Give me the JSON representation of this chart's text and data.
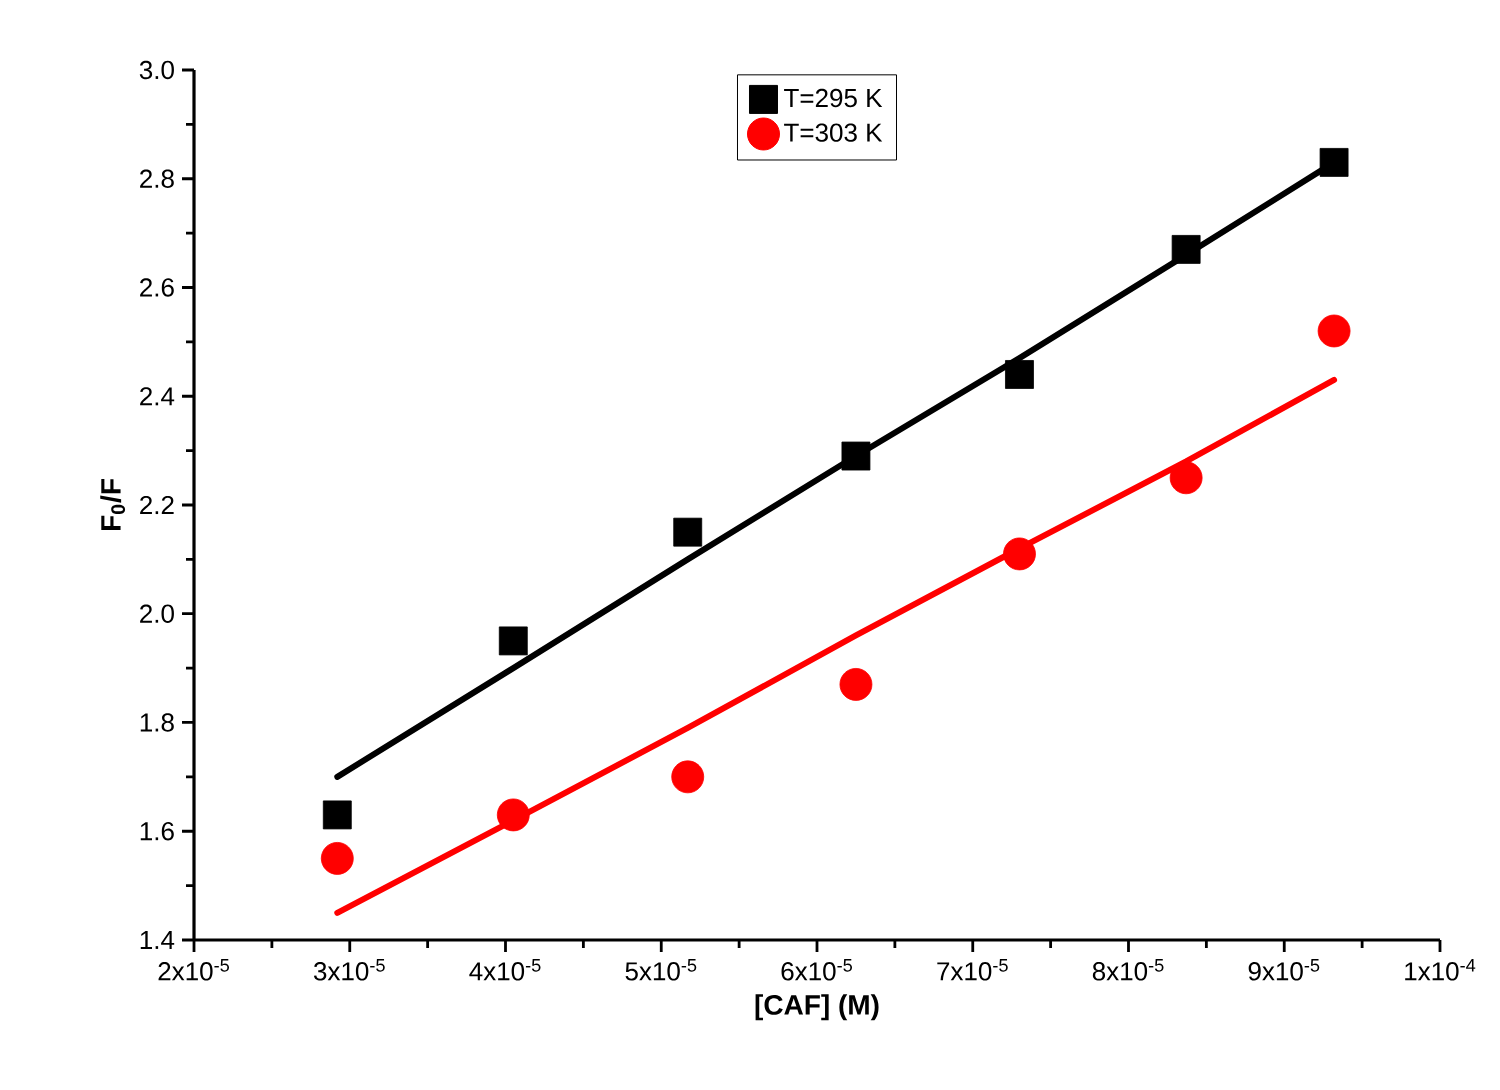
{
  "chart_data": {
    "type": "scatter",
    "xlabel": "[CAF] (M)",
    "ylabel": "**F$_{0}$/F**",
    "xlim": [
      2e-05,
      0.0001
    ],
    "xticks": [
      {
        "value": 2e-05,
        "label": "2x10$^{-5}$"
      },
      {
        "value": 3e-05,
        "label": "3x10$^{-5}$"
      },
      {
        "value": 4e-05,
        "label": "4x10$^{-5}$"
      },
      {
        "value": 5e-05,
        "label": "5x10$^{-5}$"
      },
      {
        "value": 6e-05,
        "label": "6x10$^{-5}$"
      },
      {
        "value": 7e-05,
        "label": "7x10$^{-5}$"
      },
      {
        "value": 8e-05,
        "label": "8x10$^{-5}$"
      },
      {
        "value": 9e-05,
        "label": "9x10$^{-5}$"
      },
      {
        "value": 0.0001,
        "label": "1x10$^{-4}$"
      }
    ],
    "ylim": [
      1.4,
      3.0
    ],
    "yticks": [
      {
        "value": 1.4,
        "label": "1.4"
      },
      {
        "value": 1.6,
        "label": "1.6"
      },
      {
        "value": 1.8,
        "label": "1.8"
      },
      {
        "value": 2.0,
        "label": "2.0"
      },
      {
        "value": 2.2,
        "label": "2.2"
      },
      {
        "value": 2.4,
        "label": "2.4"
      },
      {
        "value": 2.6,
        "label": "2.6"
      },
      {
        "value": 2.8,
        "label": "2.8"
      },
      {
        "value": 3.0,
        "label": "3.0"
      }
    ],
    "x": [
      2.92e-05,
      4.05e-05,
      5.17e-05,
      6.25e-05,
      7.3e-05,
      8.37e-05,
      9.32e-05
    ],
    "legend": "top",
    "grid": false,
    "series": [
      {
        "name": "T=295 K",
        "color": "#000000",
        "marker": "square",
        "values": [
          1.63,
          1.95,
          2.15,
          2.29,
          2.44,
          2.67,
          2.83
        ]
      },
      {
        "name": "T=303 K",
        "color": "#ff0000",
        "marker": "circle",
        "values": [
          1.55,
          1.63,
          1.7,
          1.87,
          2.11,
          2.25,
          2.52
        ]
      },
      {
        "type": "line",
        "color": "#000000",
        "marker": "none",
        "values": [
          1.7,
          1.9,
          2.1,
          2.29,
          2.47,
          2.66,
          2.83
        ]
      },
      {
        "type": "line",
        "color": "#ff0000",
        "marker": "none",
        "values": [
          1.45,
          1.62,
          1.79,
          1.96,
          2.12,
          2.28,
          2.43
        ]
      }
    ]
  }
}
